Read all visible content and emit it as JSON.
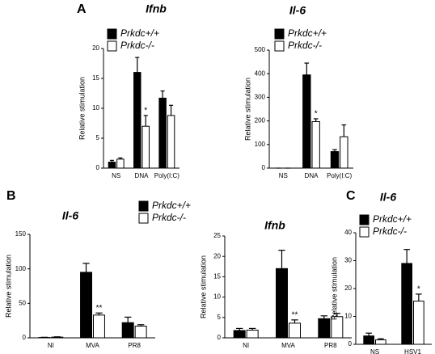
{
  "chart_data": [
    {
      "type": "bar",
      "panel": "A",
      "title": "Ifnb",
      "y_label": "Relative stimulation",
      "categories": [
        "NS",
        "DNA",
        "Poly(I:C)"
      ],
      "series": [
        {
          "name": "Prkdc+/+",
          "color": "#000000",
          "values": [
            1,
            16,
            11.7
          ],
          "errors": [
            0.3,
            2.5,
            1.2
          ]
        },
        {
          "name": "Prkdc-/-",
          "color": "#ffffff",
          "values": [
            1.5,
            7,
            8.8
          ],
          "errors": [
            0.2,
            1.8,
            1.7
          ]
        }
      ],
      "ylim": [
        0,
        20
      ],
      "yticks": [
        0,
        5,
        10,
        15,
        20
      ],
      "annotations": [
        {
          "text": "*",
          "category": "DNA"
        }
      ]
    },
    {
      "type": "bar",
      "title": "Il-6",
      "y_label": "Relative stimulation",
      "categories": [
        "NS",
        "DNA",
        "Poly(I:C)"
      ],
      "series": [
        {
          "name": "Prkdc+/+",
          "color": "#000000",
          "values": [
            0,
            395,
            70
          ],
          "errors": [
            0,
            50,
            8
          ]
        },
        {
          "name": "Prkdc-/-",
          "color": "#ffffff",
          "values": [
            0,
            197,
            133
          ],
          "errors": [
            0,
            12,
            50
          ]
        }
      ],
      "ylim": [
        0,
        500
      ],
      "yticks": [
        0,
        100,
        200,
        300,
        400,
        500
      ],
      "annotations": [
        {
          "text": "*",
          "category": "DNA"
        }
      ]
    },
    {
      "type": "bar",
      "panel": "B",
      "title": "Il-6",
      "y_label": "Relative stimulation",
      "categories": [
        "NI",
        "MVA",
        "PR8"
      ],
      "series": [
        {
          "name": "Prkdc+/+",
          "color": "#000000",
          "values": [
            0.5,
            95,
            22
          ],
          "errors": [
            0.3,
            13,
            8
          ]
        },
        {
          "name": "Prkdc-/-",
          "color": "#ffffff",
          "values": [
            1,
            33,
            17
          ],
          "errors": [
            0.5,
            3,
            2
          ]
        }
      ],
      "ylim": [
        0,
        150
      ],
      "yticks": [
        0,
        50,
        100,
        150
      ],
      "annotations": [
        {
          "text": "**",
          "category": "MVA"
        }
      ]
    },
    {
      "type": "bar",
      "title": "Ifnb",
      "y_label": "Relative stimulation",
      "categories": [
        "NI",
        "MVA",
        "PR8"
      ],
      "series": [
        {
          "color": "#000000",
          "values": [
            1.8,
            17,
            4.7
          ],
          "errors": [
            0.5,
            4.5,
            0.7
          ]
        },
        {
          "color": "#ffffff",
          "values": [
            1.9,
            3.6,
            5.2
          ],
          "errors": [
            0.4,
            0.8,
            0.8
          ]
        }
      ],
      "ylim": [
        0,
        25
      ],
      "yticks": [
        0,
        5,
        10,
        15,
        20,
        25
      ],
      "annotations": [
        {
          "text": "**",
          "category": "MVA"
        }
      ]
    },
    {
      "type": "bar",
      "panel": "C",
      "title": "Il-6",
      "y_label": "Relative stimulation",
      "categories": [
        "NS",
        "HSV1"
      ],
      "series": [
        {
          "name": "Prkdc+/+",
          "color": "#000000",
          "values": [
            3,
            29
          ],
          "errors": [
            1,
            5
          ]
        },
        {
          "name": "Prkdc-/-",
          "color": "#ffffff",
          "values": [
            1.6,
            15.5
          ],
          "errors": [
            0.4,
            2.5
          ]
        }
      ],
      "ylim": [
        0,
        40
      ],
      "yticks": [
        0,
        10,
        20,
        30,
        40
      ],
      "annotations": [
        {
          "text": "*",
          "category": "HSV1"
        }
      ]
    }
  ]
}
